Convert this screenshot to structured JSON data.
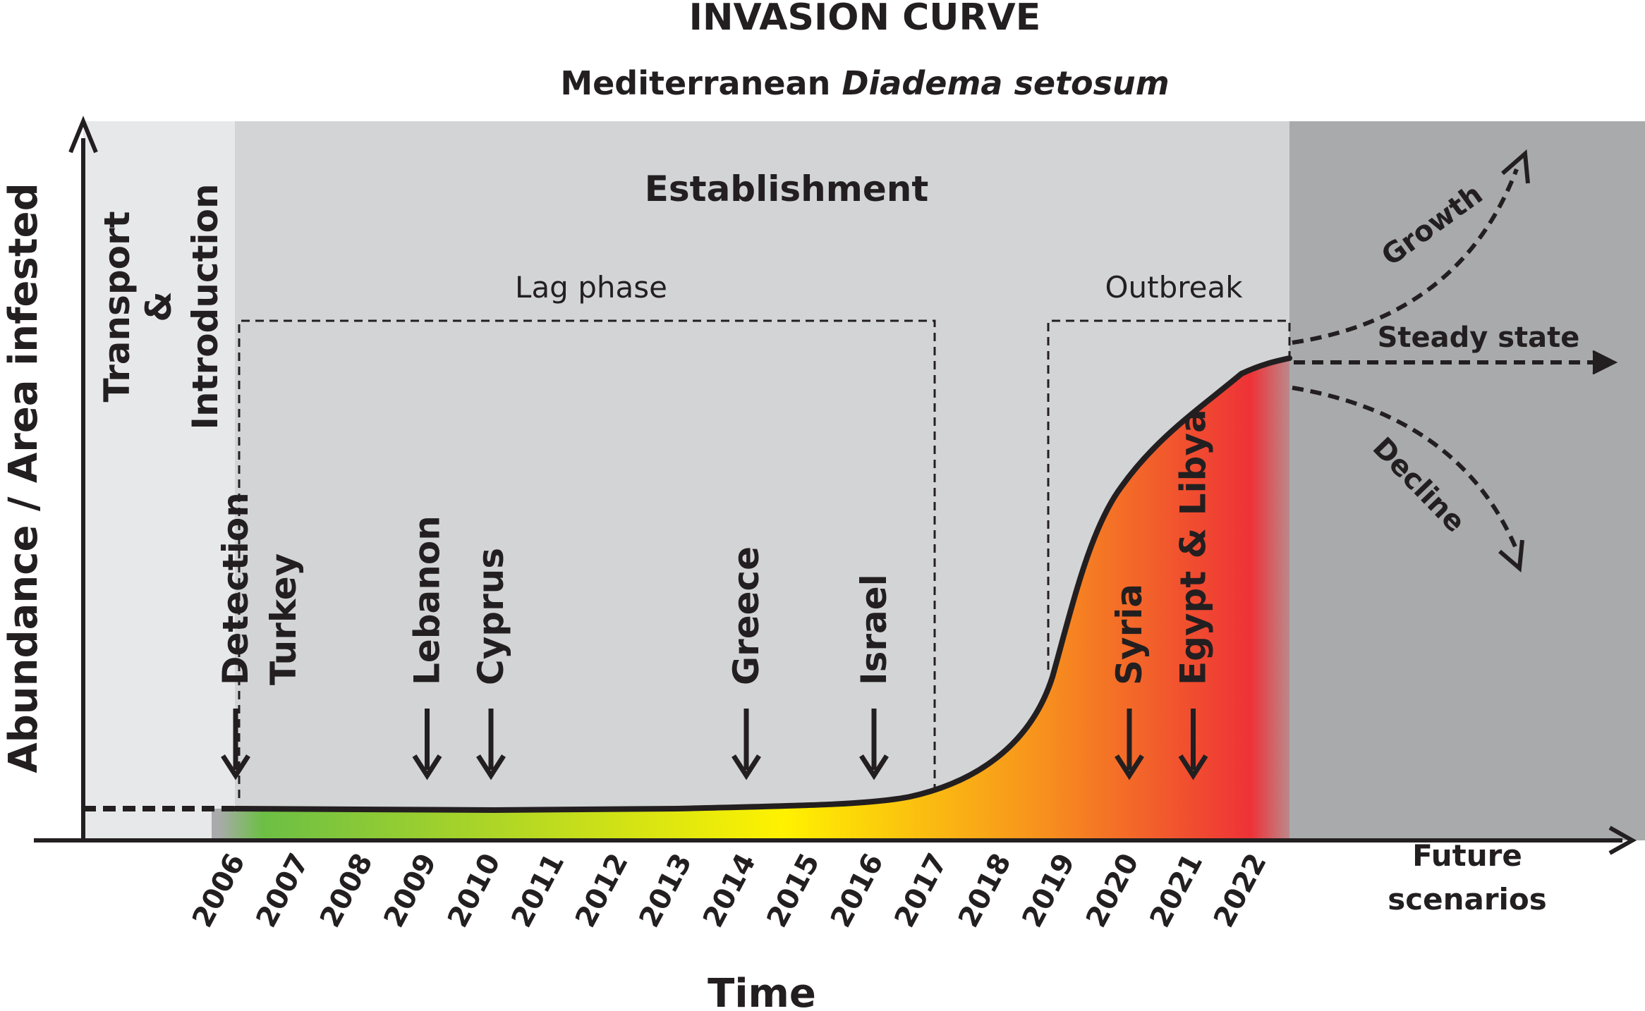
{
  "title": "INVASION CURVE",
  "subtitle": {
    "plain": "Mediterranean ",
    "italic": "Diadema setosum"
  },
  "y_axis_label": "Abundance / Area infested",
  "x_axis_label": "Time",
  "stages": {
    "transport_line1": "Transport",
    "transport_line2": "&",
    "transport_line3": "Introduction",
    "establishment": "Establishment",
    "lag_phase": "Lag phase",
    "outbreak": "Outbreak"
  },
  "years": [
    "2006",
    "2007",
    "2008",
    "2009",
    "2010",
    "2011",
    "2012",
    "2013",
    "2014",
    "2015",
    "2016",
    "2017",
    "2018",
    "2019",
    "2020",
    "2021",
    "2022"
  ],
  "events": [
    {
      "year": 2006,
      "labels": [
        "Detection",
        "Turkey"
      ]
    },
    {
      "year": 2009,
      "labels": [
        "Lebanon"
      ]
    },
    {
      "year": 2010,
      "labels": [
        "Cyprus"
      ]
    },
    {
      "year": 2014,
      "labels": [
        "Greece"
      ]
    },
    {
      "year": 2016,
      "labels": [
        "Israel"
      ]
    },
    {
      "year": 2020,
      "labels": [
        "Syria"
      ]
    },
    {
      "year": 2021,
      "labels": [
        "Egypt & Libya"
      ]
    }
  ],
  "future": {
    "line1": "Future",
    "line2": "scenarios",
    "scenarios": [
      "Growth",
      "Steady state",
      "Decline"
    ]
  },
  "colors": {
    "transport_bg": "#e7e8ea",
    "establishment_bg": "#d3d4d6",
    "future_bg": "#a9aaac",
    "curve": "#231f20",
    "gradient_green": "#6cbf45",
    "gradient_yellow": "#fff200",
    "gradient_orange": "#f7901e",
    "gradient_red": "#ee3237"
  }
}
